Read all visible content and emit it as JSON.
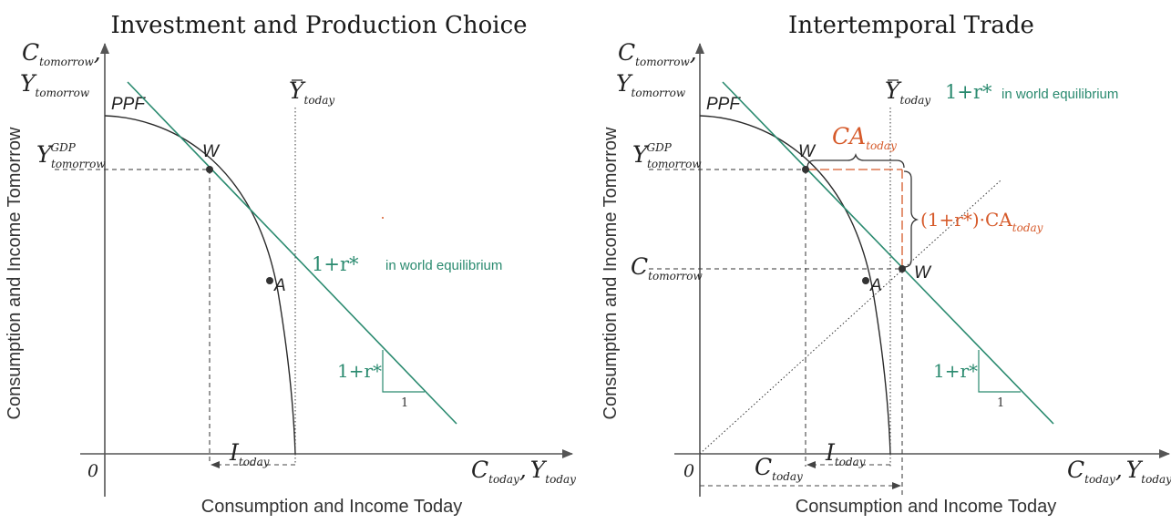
{
  "colors": {
    "budget_line": "#2a8a6f",
    "current_account": "#d65a2a",
    "curve": "#2b2b2b",
    "axis": "#555555"
  },
  "left": {
    "title": "Investment and Production Choice",
    "y_axis_title": "Consumption and Income Tomorrow",
    "x_axis_title": "Consumption and Income Today",
    "origin": "0",
    "y_top_C": "C",
    "y_top_C_sub": "tomorrow",
    "y_top_comma": ",",
    "y_top_Y": "Y",
    "y_top_Y_sub": "tomorrow",
    "x_end_C": "C",
    "x_end_C_sub": "today",
    "x_end_comma": ",",
    "x_end_Y": "Y",
    "x_end_Y_sub": "today",
    "ppf": "PPF",
    "ybar": "Y",
    "ybar_sub": "today",
    "ygdp": "Y",
    "ygdp_sup": "GDP",
    "ygdp_sub": "tomorrow",
    "point_w": "W",
    "point_a": "A",
    "line_label": "1+r*",
    "line_note": "in world equilibrium",
    "slope_label": "1+r*",
    "slope_run": "1",
    "investment": "I",
    "investment_sub": "today"
  },
  "right": {
    "title": "Intertemporal Trade",
    "y_axis_title": "Consumption and Income Tomorrow",
    "x_axis_title": "Consumption and Income Today",
    "origin": "0",
    "y_top_C": "C",
    "y_top_C_sub": "tomorrow",
    "y_top_comma": ",",
    "y_top_Y": "Y",
    "y_top_Y_sub": "tomorrow",
    "x_end_C": "C",
    "x_end_C_sub": "today",
    "x_end_comma": ",",
    "x_end_Y": "Y",
    "x_end_Y_sub": "today",
    "ppf": "PPF",
    "ybar": "Y",
    "ybar_sub": "today",
    "ygdp": "Y",
    "ygdp_sup": "GDP",
    "ygdp_sub": "tomorrow",
    "ctomorrow": "C",
    "ctomorrow_sub": "tomorrow",
    "point_w_prod": "W",
    "point_w_cons": "W",
    "point_a": "A",
    "line_label": "1+r*",
    "line_note": "in world equilibrium",
    "ca": "CA",
    "ca_sub": "today",
    "ca_repay": "(1+r*)·CA",
    "ca_repay_sub": "today",
    "slope_label": "1+r*",
    "slope_run": "1",
    "investment": "I",
    "investment_sub": "today",
    "ctoday": "C",
    "ctoday_sub": "today"
  }
}
